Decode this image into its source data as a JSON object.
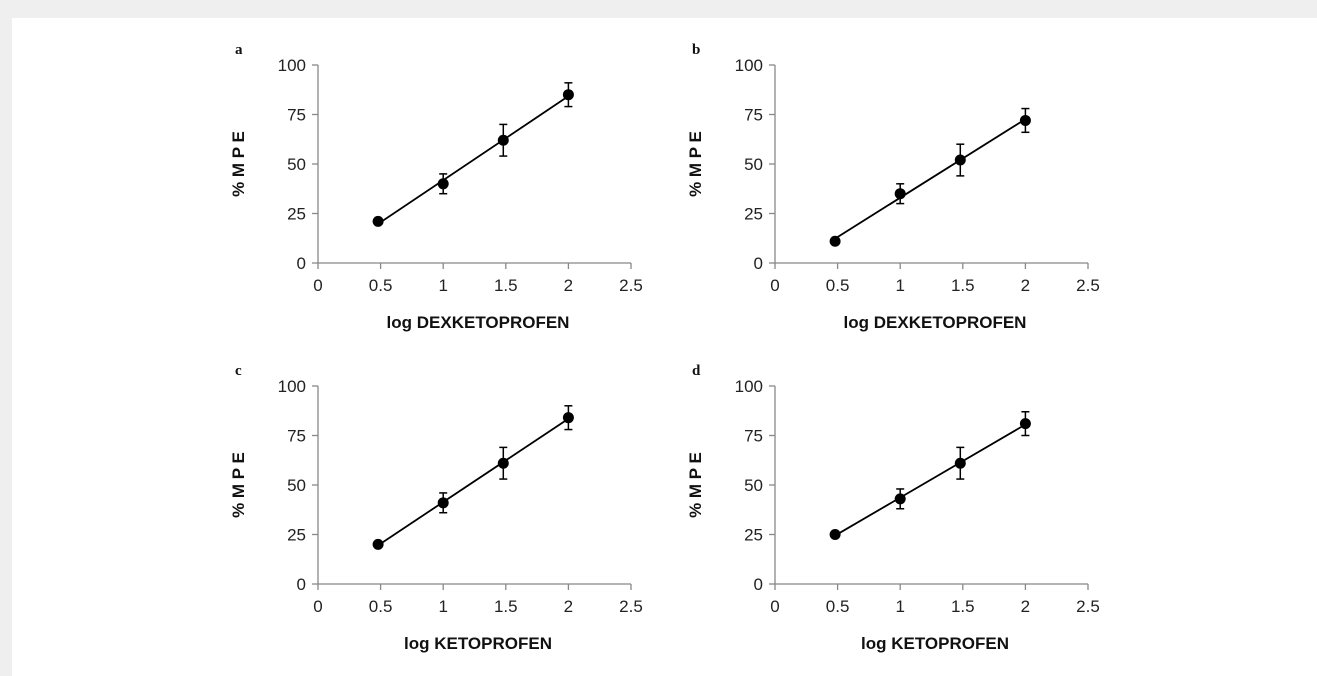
{
  "figure": {
    "background": "#efefef",
    "panel_background": "#ffffff",
    "ink": "#000000"
  },
  "chart_data": [
    {
      "type": "scatter",
      "panel_label": "a",
      "xlabel": "log DEXKETOPROFEN",
      "ylabel": "% M P E",
      "xlim": [
        0,
        2.5
      ],
      "ylim": [
        0,
        100
      ],
      "xticks": [
        "0",
        "0.5",
        "1",
        "1.5",
        "2",
        "2.5"
      ],
      "yticks": [
        "0",
        "25",
        "50",
        "75",
        "100"
      ],
      "grid": false,
      "regression_line": true,
      "series": [
        {
          "x": [
            0.48,
            1.0,
            1.48,
            2.0
          ],
          "y": [
            21,
            40,
            62,
            85
          ],
          "error": [
            1.5,
            5,
            8,
            6
          ]
        }
      ]
    },
    {
      "type": "scatter",
      "panel_label": "b",
      "xlabel": "log DEXKETOPROFEN",
      "ylabel": "% M P E",
      "xlim": [
        0,
        2.5
      ],
      "ylim": [
        0,
        100
      ],
      "xticks": [
        "0",
        "0.5",
        "1",
        "1.5",
        "2",
        "2.5"
      ],
      "yticks": [
        "0",
        "25",
        "50",
        "75",
        "100"
      ],
      "grid": false,
      "regression_line": true,
      "series": [
        {
          "x": [
            0.48,
            1.0,
            1.48,
            2.0
          ],
          "y": [
            11,
            35,
            52,
            72
          ],
          "error": [
            1.5,
            5,
            8,
            6
          ]
        }
      ]
    },
    {
      "type": "scatter",
      "panel_label": "c",
      "xlabel": "log KETOPROFEN",
      "ylabel": "% M P E",
      "xlim": [
        0,
        2.5
      ],
      "ylim": [
        0,
        100
      ],
      "xticks": [
        "0",
        "0.5",
        "1",
        "1.5",
        "2",
        "2.5"
      ],
      "yticks": [
        "0",
        "25",
        "50",
        "75",
        "100"
      ],
      "grid": false,
      "regression_line": true,
      "series": [
        {
          "x": [
            0.48,
            1.0,
            1.48,
            2.0
          ],
          "y": [
            20,
            41,
            61,
            84
          ],
          "error": [
            1.5,
            5,
            8,
            6
          ]
        }
      ]
    },
    {
      "type": "scatter",
      "panel_label": "d",
      "xlabel": "log KETOPROFEN",
      "ylabel": "% M P E",
      "xlim": [
        0,
        2.5
      ],
      "ylim": [
        0,
        100
      ],
      "xticks": [
        "0",
        "0.5",
        "1",
        "1.5",
        "2",
        "2.5"
      ],
      "yticks": [
        "0",
        "25",
        "50",
        "75",
        "100"
      ],
      "grid": false,
      "regression_line": true,
      "series": [
        {
          "x": [
            0.48,
            1.0,
            1.48,
            2.0
          ],
          "y": [
            25,
            43,
            61,
            81
          ],
          "error": [
            1.5,
            5,
            8,
            6
          ]
        }
      ]
    }
  ]
}
